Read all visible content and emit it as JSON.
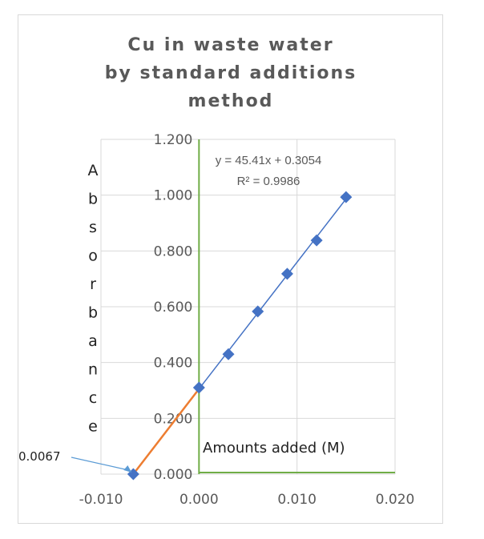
{
  "chart_data": {
    "type": "scatter",
    "title_lines": [
      "Cu in waste water",
      "by standard additions",
      "method"
    ],
    "xlabel": "Amounts added (M)",
    "ylabel_letters": [
      "A",
      "b",
      "s",
      "o",
      "r",
      "b",
      "a",
      "n",
      "c",
      "e"
    ],
    "xlim": [
      -0.01,
      0.02
    ],
    "ylim": [
      0.0,
      1.2
    ],
    "x_ticks": [
      "-0.010",
      "0.000",
      "0.010",
      "0.020"
    ],
    "x_tick_values": [
      -0.01,
      0.0,
      0.01,
      0.02
    ],
    "y_ticks": [
      "0.000",
      "0.200",
      "0.400",
      "0.600",
      "0.800",
      "1.000",
      "1.200"
    ],
    "y_tick_values": [
      0.0,
      0.2,
      0.4,
      0.6,
      0.8,
      1.0,
      1.2
    ],
    "grid": true,
    "series": [
      {
        "marker": "diamond",
        "color": "#4472c4",
        "x": [
          0.0,
          0.003,
          0.006,
          0.009,
          0.012,
          0.015
        ],
        "y": [
          0.31,
          0.43,
          0.583,
          0.718,
          0.838,
          0.993
        ]
      }
    ],
    "trendline": {
      "color": "#4472c4",
      "slope": 45.41,
      "intercept": 0.3054,
      "x_range": [
        0.0,
        0.015
      ],
      "equation": "y = 45.41x + 0.3054",
      "r_squared": "R² = 0.9986"
    },
    "extrapolation": {
      "color": "#ed7d31",
      "x_range": [
        -0.0067,
        0.0
      ],
      "y_range": [
        0.0,
        0.3054
      ]
    },
    "annotation": {
      "text": "0.0067",
      "x": -0.0067,
      "y": 0.0
    },
    "reference_axes_color": "#70ad47"
  }
}
